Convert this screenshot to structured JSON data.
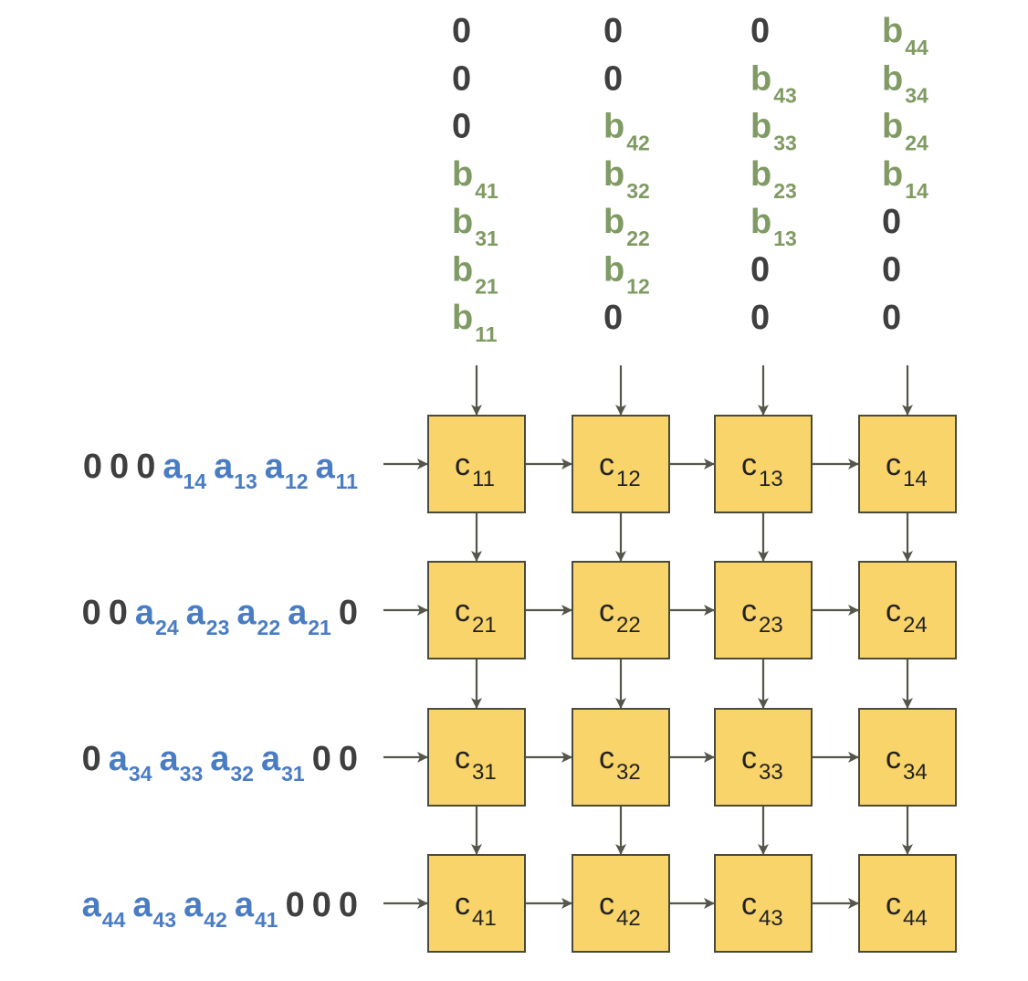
{
  "colors": {
    "cell_fill": "#F9D46B",
    "cell_stroke": "#4a4a3a",
    "arrow": "#55554a",
    "a_text": "#4A7CC4",
    "b_text": "#7F9A63",
    "zero_text": "#3f3f3f"
  },
  "grid": {
    "cells": [
      [
        "c|11",
        "c|12",
        "c|13",
        "c|14"
      ],
      [
        "c|21",
        "c|22",
        "c|23",
        "c|24"
      ],
      [
        "c|31",
        "c|32",
        "c|33",
        "c|34"
      ],
      [
        "c|41",
        "c|42",
        "c|43",
        "c|44"
      ]
    ]
  },
  "column_inputs": [
    [
      "0",
      "0",
      "0",
      "b|41",
      "b|31",
      "b|21",
      "b|11"
    ],
    [
      "0",
      "0",
      "b|42",
      "b|32",
      "b|22",
      "b|12",
      "0"
    ],
    [
      "0",
      "b|43",
      "b|33",
      "b|23",
      "b|13",
      "0",
      "0"
    ],
    [
      "b|44",
      "b|34",
      "b|24",
      "b|14",
      "0",
      "0",
      "0"
    ]
  ],
  "row_inputs": [
    [
      "0",
      "0",
      "0",
      "a|14",
      "a|13",
      "a|12",
      "a|11"
    ],
    [
      "0",
      "0",
      "a|24",
      "a|23",
      "a|22",
      "a|21",
      "0"
    ],
    [
      "0",
      "a|34",
      "a|33",
      "a|32",
      "a|31",
      "0",
      "0"
    ],
    [
      "a|44",
      "a|43",
      "a|42",
      "a|41",
      "0",
      "0",
      "0"
    ]
  ]
}
